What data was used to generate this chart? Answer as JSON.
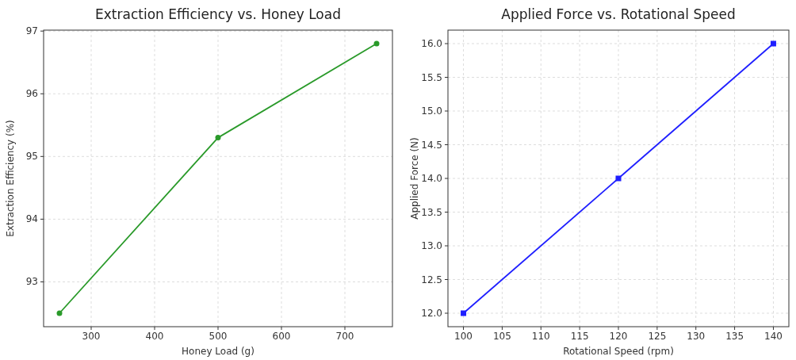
{
  "chart_data": [
    {
      "type": "line",
      "title": "Extraction Efficiency vs. Honey Load",
      "xlabel": "Honey Load (g)",
      "ylabel": "Extraction Efficiency (%)",
      "x": [
        250,
        500,
        750
      ],
      "series": [
        {
          "color": "#2a9a2a",
          "values": [
            92.5,
            95.3,
            96.8
          ]
        }
      ],
      "xlim": [
        225,
        775
      ],
      "xticks": [
        300,
        400,
        500,
        600,
        700
      ],
      "ylim": [
        92.285,
        97.015
      ],
      "yticks": [
        93,
        94,
        95,
        96,
        97
      ],
      "grid": true,
      "marker": "circle"
    },
    {
      "type": "line",
      "title": "Applied Force vs. Rotational Speed",
      "xlabel": "Rotational Speed (rpm)",
      "ylabel": "Applied Force (N)",
      "x": [
        100,
        120,
        140
      ],
      "series": [
        {
          "color": "#1f1fff",
          "values": [
            12.0,
            14.0,
            16.0
          ]
        }
      ],
      "xlim": [
        98,
        142
      ],
      "xticks": [
        100,
        105,
        110,
        115,
        120,
        125,
        130,
        135,
        140
      ],
      "ylim": [
        11.8,
        16.2
      ],
      "yticks": [
        {
          "value": 12,
          "label": "12.0"
        },
        {
          "value": 12.5,
          "label": "12.5"
        },
        {
          "value": 13,
          "label": "13.0"
        },
        {
          "value": 13.5,
          "label": "13.5"
        },
        {
          "value": 14,
          "label": "14.0"
        },
        {
          "value": 14.5,
          "label": "14.5"
        },
        {
          "value": 15,
          "label": "15.0"
        },
        {
          "value": 15.5,
          "label": "15.5"
        },
        {
          "value": 16,
          "label": "16.0"
        }
      ],
      "grid": true,
      "marker": "square"
    }
  ]
}
